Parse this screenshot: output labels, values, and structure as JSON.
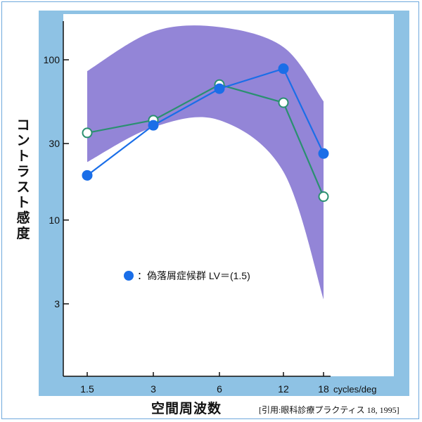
{
  "chart_data": {
    "type": "line",
    "ylabel": "コントラスト感度",
    "xlabel": "空間周波数",
    "x_unit": "cycles/deg",
    "x_scale": "log",
    "y_scale": "log",
    "x_ticks": [
      1.5,
      3,
      6,
      12,
      18
    ],
    "x_tick_labels": [
      "1.5",
      "3",
      "6",
      "12",
      "18"
    ],
    "y_ticks": [
      3,
      10,
      30,
      100
    ],
    "y_tick_labels": [
      "3",
      "10",
      "30",
      "100"
    ],
    "ylim": [
      1.5,
      200
    ],
    "xlim": [
      1.0,
      26
    ],
    "band": {
      "x": [
        1.5,
        3,
        6,
        12,
        18
      ],
      "upper": [
        85,
        150,
        160,
        120,
        55
      ],
      "lower": [
        23,
        38,
        42,
        20,
        3.2
      ]
    },
    "series": [
      {
        "name": "偽落屑症候群 LV＝(1.5)",
        "marker": "filled-circle",
        "color": "#1a6ee8",
        "x": [
          1.5,
          3,
          6,
          12,
          18
        ],
        "y": [
          19,
          39,
          66,
          88,
          26
        ]
      },
      {
        "name": "",
        "marker": "open-circle",
        "color": "#2a9070",
        "x": [
          1.5,
          3,
          6,
          12,
          18
        ],
        "y": [
          35,
          42,
          70,
          54,
          14
        ]
      }
    ],
    "legend_position": "left-middle",
    "legend_text": "：偽落屑症候群  LV＝(1.5)"
  },
  "colors": {
    "plot_background": "#8ec2e4",
    "band": "#8070d0",
    "axis": "#111111"
  },
  "citation": "[引用:眼科診療プラクティス 18, 1995]"
}
